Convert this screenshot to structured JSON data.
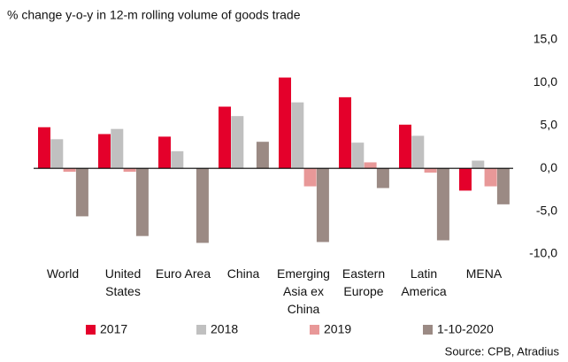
{
  "chart_data": {
    "type": "bar",
    "title": "% change y-o-y in 12-m rolling volume of goods trade",
    "source": "Source: CPB, Atradius",
    "categories": [
      "World",
      "United\nStates",
      "Euro Area",
      "China",
      "Emerging\nAsia ex\nChina",
      "Eastern\nEurope",
      "Latin\nAmerica",
      "MENA"
    ],
    "series": [
      {
        "name": "2017",
        "color": "#e4002b",
        "values": [
          4.8,
          4.0,
          3.7,
          7.2,
          10.6,
          8.3,
          5.1,
          -2.6
        ]
      },
      {
        "name": "2018",
        "color": "#c0c0c0",
        "values": [
          3.4,
          4.6,
          2.0,
          6.1,
          7.7,
          3.0,
          3.8,
          0.9
        ]
      },
      {
        "name": "2019",
        "color": "#e89898",
        "values": [
          -0.4,
          -0.4,
          0.0,
          0.0,
          -2.1,
          0.7,
          -0.5,
          -2.1
        ]
      },
      {
        "name": "1-10-2020",
        "color": "#9b8a84",
        "values": [
          -5.6,
          -7.9,
          -8.7,
          3.1,
          -8.6,
          -2.3,
          -8.4,
          -4.2
        ]
      }
    ],
    "ylim": [
      -10,
      15
    ],
    "yticks": [
      {
        "value": 15,
        "label": "15,0"
      },
      {
        "value": 10,
        "label": "10,0"
      },
      {
        "value": 5,
        "label": "5,0"
      },
      {
        "value": 0,
        "label": "0,0"
      },
      {
        "value": -5,
        "label": "-5,0"
      },
      {
        "value": -10,
        "label": "-10,0"
      }
    ]
  }
}
